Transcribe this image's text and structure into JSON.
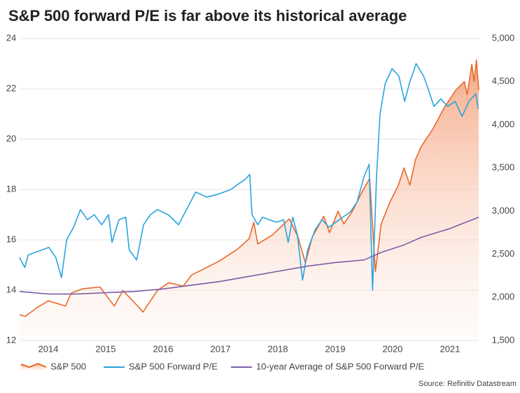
{
  "chart_data": {
    "type": "line",
    "title": "S&P 500 forward P/E is far above its historical average",
    "source": "Source: Refinitiv Datastream",
    "xlim": [
      2014,
      2022
    ],
    "xticks": [
      {
        "value": 2014.5,
        "label": "2014"
      },
      {
        "value": 2015.5,
        "label": "2015"
      },
      {
        "value": 2016.5,
        "label": "2016"
      },
      {
        "value": 2017.5,
        "label": "2017"
      },
      {
        "value": 2018.5,
        "label": "2018"
      },
      {
        "value": 2019.5,
        "label": "2019"
      },
      {
        "value": 2020.5,
        "label": "2020"
      },
      {
        "value": 2021.5,
        "label": "2021"
      }
    ],
    "ylim": [
      12,
      24
    ],
    "yticks": [
      12,
      14,
      16,
      18,
      20,
      22,
      24
    ],
    "y2lim": [
      1500,
      5000
    ],
    "y2ticks": [
      {
        "value": 1500,
        "label": "1,500"
      },
      {
        "value": 2000,
        "label": "2,000"
      },
      {
        "value": 2500,
        "label": "2,500"
      },
      {
        "value": 3000,
        "label": "3,000"
      },
      {
        "value": 3500,
        "label": "3,500"
      },
      {
        "value": 4000,
        "label": "4,000"
      },
      {
        "value": 4500,
        "label": "4,500"
      },
      {
        "value": 5000,
        "label": "5,000"
      }
    ],
    "grid": true,
    "legend": "bottom",
    "series": [
      {
        "name": "S&P 500",
        "color": "#e8692a",
        "axis": "y2",
        "area": true,
        "x": [
          2014.0,
          2014.1,
          2014.3,
          2014.5,
          2014.8,
          2014.9,
          2015.1,
          2015.4,
          2015.65,
          2015.8,
          2016.1,
          2016.15,
          2016.4,
          2016.6,
          2016.85,
          2017.0,
          2017.3,
          2017.5,
          2017.8,
          2018.0,
          2018.08,
          2018.15,
          2018.4,
          2018.7,
          2018.85,
          2018.98,
          2019.1,
          2019.3,
          2019.4,
          2019.55,
          2019.65,
          2019.8,
          2019.95,
          2020.1,
          2020.2,
          2020.3,
          2020.45,
          2020.6,
          2020.7,
          2020.8,
          2020.9,
          2021.0,
          2021.2,
          2021.4,
          2021.6,
          2021.75,
          2021.8,
          2021.88,
          2021.92,
          2021.96,
          2022.0
        ],
        "values": [
          1800,
          1780,
          1880,
          1960,
          1900,
          2050,
          2100,
          2120,
          1900,
          2080,
          1870,
          1830,
          2080,
          2170,
          2130,
          2260,
          2360,
          2430,
          2560,
          2680,
          2870,
          2620,
          2720,
          2910,
          2700,
          2400,
          2700,
          2940,
          2750,
          3000,
          2850,
          3000,
          3200,
          3380,
          2300,
          2850,
          3100,
          3300,
          3500,
          3300,
          3600,
          3750,
          3950,
          4200,
          4400,
          4500,
          4350,
          4700,
          4500,
          4750,
          4400
        ]
      },
      {
        "name": "S&P 500 Forward P/E",
        "color": "#2aa3e0",
        "axis": "y",
        "x": [
          2014.0,
          2014.09,
          2014.15,
          2014.27,
          2014.39,
          2014.51,
          2014.63,
          2014.73,
          2014.82,
          2014.94,
          2015.06,
          2015.18,
          2015.3,
          2015.43,
          2015.55,
          2015.61,
          2015.73,
          2015.85,
          2015.91,
          2016.04,
          2016.16,
          2016.28,
          2016.4,
          2016.59,
          2016.77,
          2016.93,
          2017.07,
          2017.26,
          2017.44,
          2017.56,
          2017.68,
          2017.8,
          2017.93,
          2018.01,
          2018.05,
          2018.15,
          2018.23,
          2018.35,
          2018.48,
          2018.6,
          2018.68,
          2018.76,
          2018.84,
          2018.93,
          2019.02,
          2019.15,
          2019.27,
          2019.39,
          2019.51,
          2019.63,
          2019.76,
          2019.88,
          2020.0,
          2020.09,
          2020.15,
          2020.22,
          2020.28,
          2020.37,
          2020.49,
          2020.61,
          2020.71,
          2020.79,
          2020.91,
          2021.04,
          2021.12,
          2021.22,
          2021.34,
          2021.46,
          2021.59,
          2021.71,
          2021.83,
          2021.95,
          2021.99
        ],
        "values": [
          15.3,
          14.9,
          15.4,
          15.5,
          15.6,
          15.7,
          15.3,
          14.5,
          16.0,
          16.5,
          17.2,
          16.8,
          17.0,
          16.6,
          17.0,
          15.9,
          16.8,
          16.9,
          15.6,
          15.2,
          16.6,
          17.0,
          17.2,
          17.0,
          16.6,
          17.3,
          17.9,
          17.7,
          17.8,
          17.9,
          18.0,
          18.2,
          18.4,
          18.6,
          17.0,
          16.6,
          16.9,
          16.8,
          16.7,
          16.8,
          15.9,
          16.9,
          16.2,
          14.4,
          15.6,
          16.4,
          16.8,
          16.5,
          16.7,
          16.9,
          17.1,
          17.5,
          18.5,
          19.0,
          14.0,
          18.5,
          21.0,
          22.2,
          22.8,
          22.5,
          21.5,
          22.2,
          23.0,
          22.5,
          22.0,
          21.3,
          21.6,
          21.3,
          21.5,
          20.9,
          21.5,
          21.8,
          21.2
        ]
      },
      {
        "name": "10-year Average of S&P 500 Forward P/E",
        "color": "#7b5ea7",
        "axis": "y",
        "x": [
          2014.0,
          2014.5,
          2015.0,
          2015.5,
          2016.0,
          2016.5,
          2017.0,
          2017.5,
          2018.0,
          2018.5,
          2019.0,
          2019.5,
          2020.0,
          2020.3,
          2020.7,
          2021.0,
          2021.5,
          2022.0
        ],
        "values": [
          13.95,
          13.85,
          13.85,
          13.9,
          13.95,
          14.05,
          14.2,
          14.35,
          14.55,
          14.75,
          14.95,
          15.1,
          15.2,
          15.5,
          15.8,
          16.1,
          16.45,
          16.9
        ]
      }
    ]
  }
}
